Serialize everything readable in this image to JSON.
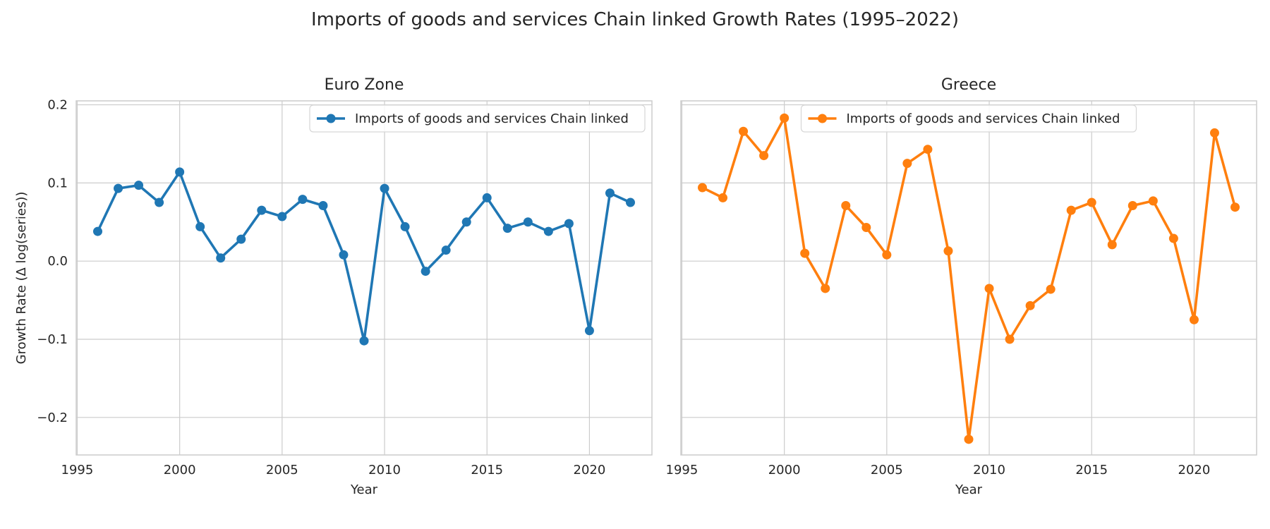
{
  "page": {
    "title": "Imports of goods and services Chain linked Growth Rates (1995–2022)"
  },
  "chart_data": [
    {
      "type": "line",
      "title": "Euro Zone",
      "xlabel": "Year",
      "ylabel": "Growth Rate (Δ log(series))",
      "xlim": [
        1994.95,
        2023.05
      ],
      "ylim": [
        -0.248,
        0.205
      ],
      "xticks": [
        1995,
        2000,
        2005,
        2010,
        2015,
        2020
      ],
      "yticks": [
        -0.2,
        -0.1,
        0.0,
        0.1,
        0.2
      ],
      "grid": true,
      "legend_position": "upper right",
      "series": [
        {
          "name": "Imports of goods and services Chain linked",
          "color": "#1f77b4",
          "x": [
            1996,
            1997,
            1998,
            1999,
            2000,
            2001,
            2002,
            2003,
            2004,
            2005,
            2006,
            2007,
            2008,
            2009,
            2010,
            2011,
            2012,
            2013,
            2014,
            2015,
            2016,
            2017,
            2018,
            2019,
            2020,
            2021,
            2022
          ],
          "y": [
            0.038,
            0.093,
            0.097,
            0.075,
            0.114,
            0.044,
            0.004,
            0.028,
            0.065,
            0.057,
            0.079,
            0.071,
            0.008,
            -0.102,
            0.093,
            0.044,
            -0.013,
            0.014,
            0.05,
            0.081,
            0.042,
            0.05,
            0.038,
            0.048,
            -0.089,
            0.087,
            0.075
          ]
        }
      ]
    },
    {
      "type": "line",
      "title": "Greece",
      "xlabel": "Year",
      "ylabel": "",
      "xlim": [
        1994.95,
        2023.05
      ],
      "ylim": [
        -0.248,
        0.205
      ],
      "xticks": [
        1995,
        2000,
        2005,
        2010,
        2015,
        2020
      ],
      "yticks": [
        -0.2,
        -0.1,
        0.0,
        0.1,
        0.2
      ],
      "grid": true,
      "legend_position": "upper center",
      "series": [
        {
          "name": "Imports of goods and services Chain linked",
          "color": "#ff7f0e",
          "x": [
            1996,
            1997,
            1998,
            1999,
            2000,
            2001,
            2002,
            2003,
            2004,
            2005,
            2006,
            2007,
            2008,
            2009,
            2010,
            2011,
            2012,
            2013,
            2014,
            2015,
            2016,
            2017,
            2018,
            2019,
            2020,
            2021,
            2022
          ],
          "y": [
            0.094,
            0.081,
            0.166,
            0.135,
            0.183,
            0.01,
            -0.035,
            0.071,
            0.043,
            0.008,
            0.125,
            0.143,
            0.013,
            -0.228,
            -0.035,
            -0.1,
            -0.057,
            -0.036,
            0.065,
            0.075,
            0.021,
            0.071,
            0.077,
            0.029,
            -0.075,
            0.164,
            0.069
          ]
        }
      ]
    }
  ]
}
